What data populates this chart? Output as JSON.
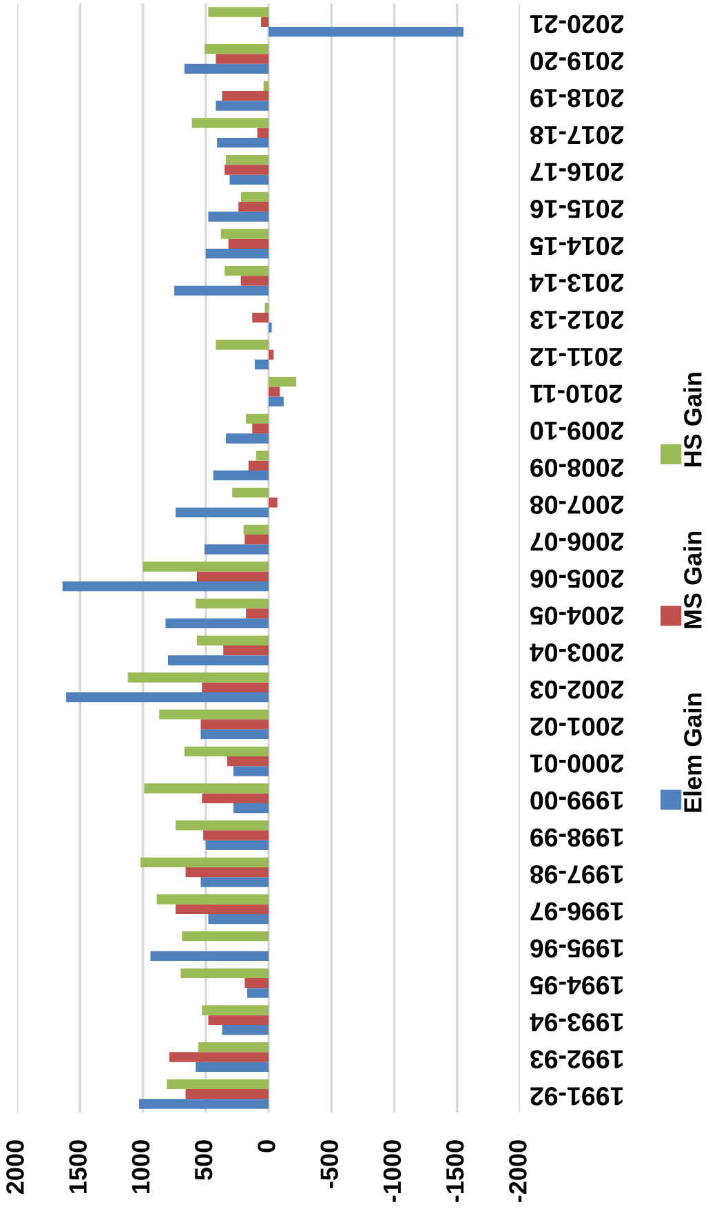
{
  "chart_data": {
    "type": "bar",
    "orientation": "horizontal",
    "categories": [
      "2020-21",
      "2019-20",
      "2018-19",
      "2017-18",
      "2016-17",
      "2015-16",
      "2014-15",
      "2013-14",
      "2012-13",
      "2011-12",
      "2010-11",
      "2009-10",
      "2008-09",
      "2007-08",
      "2006-07",
      "2005-06",
      "2004-05",
      "2003-04",
      "2002-03",
      "2001-02",
      "2000-01",
      "1999-00",
      "1998-99",
      "1997-98",
      "1996-97",
      "1995-96",
      "1994-95",
      "1993-94",
      "1992-93",
      "1991-92"
    ],
    "series": [
      {
        "name": "Elem Gain",
        "color": "#4f81bd",
        "values": [
          -1550,
          670,
          420,
          410,
          310,
          480,
          500,
          750,
          -25,
          110,
          -120,
          340,
          440,
          740,
          510,
          1640,
          820,
          800,
          1610,
          540,
          280,
          280,
          500,
          540,
          480,
          940,
          170,
          370,
          580,
          1030
        ]
      },
      {
        "name": "MS Gain",
        "color": "#c0504d",
        "values": [
          60,
          420,
          370,
          90,
          350,
          240,
          320,
          220,
          130,
          -40,
          -90,
          130,
          160,
          -70,
          190,
          570,
          180,
          360,
          530,
          540,
          330,
          530,
          520,
          660,
          740,
          0,
          190,
          480,
          790,
          660
        ]
      },
      {
        "name": "HS Gain",
        "color": "#9bbb59",
        "values": [
          480,
          510,
          40,
          610,
          340,
          220,
          380,
          350,
          30,
          420,
          -220,
          180,
          100,
          290,
          200,
          1000,
          580,
          570,
          1120,
          870,
          670,
          990,
          740,
          1020,
          890,
          690,
          700,
          530,
          560,
          810
        ]
      }
    ],
    "xlim": [
      2000,
      -2000
    ],
    "xticks": [
      2000,
      1500,
      1000,
      500,
      0,
      -500,
      -1000,
      -1500,
      -2000
    ],
    "grid": "x",
    "legend": "right"
  }
}
